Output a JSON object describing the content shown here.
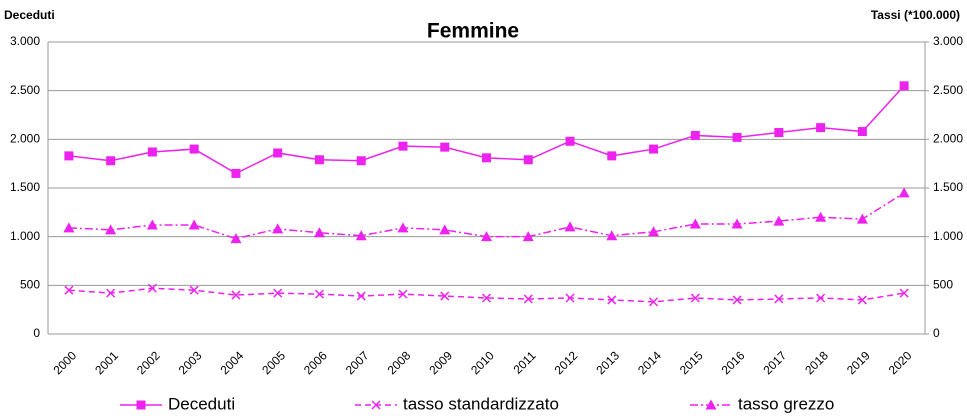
{
  "chart_data": {
    "type": "line",
    "title": "Femmine",
    "y_label": "Deceduti",
    "y2_label": "Tassi (*100.000)",
    "categories": [
      "2000",
      "2001",
      "2002",
      "2003",
      "2004",
      "2005",
      "2006",
      "2007",
      "2008",
      "2009",
      "2010",
      "2011",
      "2012",
      "2013",
      "2014",
      "2015",
      "2016",
      "2017",
      "2018",
      "2019",
      "2020"
    ],
    "series": [
      {
        "name": "Deceduti",
        "color": "#ee22ee",
        "marker": "square",
        "dash": "solid",
        "values": [
          1830,
          1780,
          1870,
          1900,
          1650,
          1860,
          1790,
          1780,
          1930,
          1920,
          1810,
          1790,
          1980,
          1830,
          1900,
          2040,
          2020,
          2070,
          2120,
          2080,
          2550
        ]
      },
      {
        "name": "tasso standardizzato",
        "color": "#ee22ee",
        "marker": "x",
        "dash": "dashed",
        "axis": "y2",
        "values": [
          450,
          420,
          470,
          450,
          400,
          420,
          410,
          390,
          410,
          390,
          370,
          360,
          370,
          350,
          330,
          370,
          350,
          360,
          370,
          350,
          420
        ]
      },
      {
        "name": "tasso grezzo",
        "color": "#ee22ee",
        "marker": "triangle",
        "dash": "dashdot",
        "axis": "y2",
        "values": [
          1090,
          1070,
          1120,
          1120,
          980,
          1080,
          1040,
          1010,
          1090,
          1070,
          1000,
          1000,
          1100,
          1010,
          1050,
          1130,
          1130,
          1160,
          1200,
          1180,
          1450
        ]
      }
    ],
    "ylim": [
      0,
      3000
    ],
    "yticks": [
      0,
      {
        "value": 500,
        "label": "500"
      },
      {
        "value": 1000,
        "label": "1.000"
      },
      {
        "value": 1500,
        "label": "1.500"
      },
      {
        "value": 2000,
        "label": "2.000"
      },
      {
        "value": 2500,
        "label": "2.500"
      },
      {
        "value": 3000,
        "label": "3.000"
      }
    ],
    "y2lim": [
      0,
      3000
    ],
    "y2ticks": [
      0,
      {
        "value": 500,
        "label": "500"
      },
      {
        "value": 1000,
        "label": "1.000"
      },
      {
        "value": 1500,
        "label": "1.500"
      },
      {
        "value": 2000,
        "label": "2.000"
      },
      {
        "value": 2500,
        "label": "2.500"
      },
      {
        "value": 3000,
        "label": "3.000"
      }
    ],
    "grid": true,
    "legend": "bottom"
  }
}
